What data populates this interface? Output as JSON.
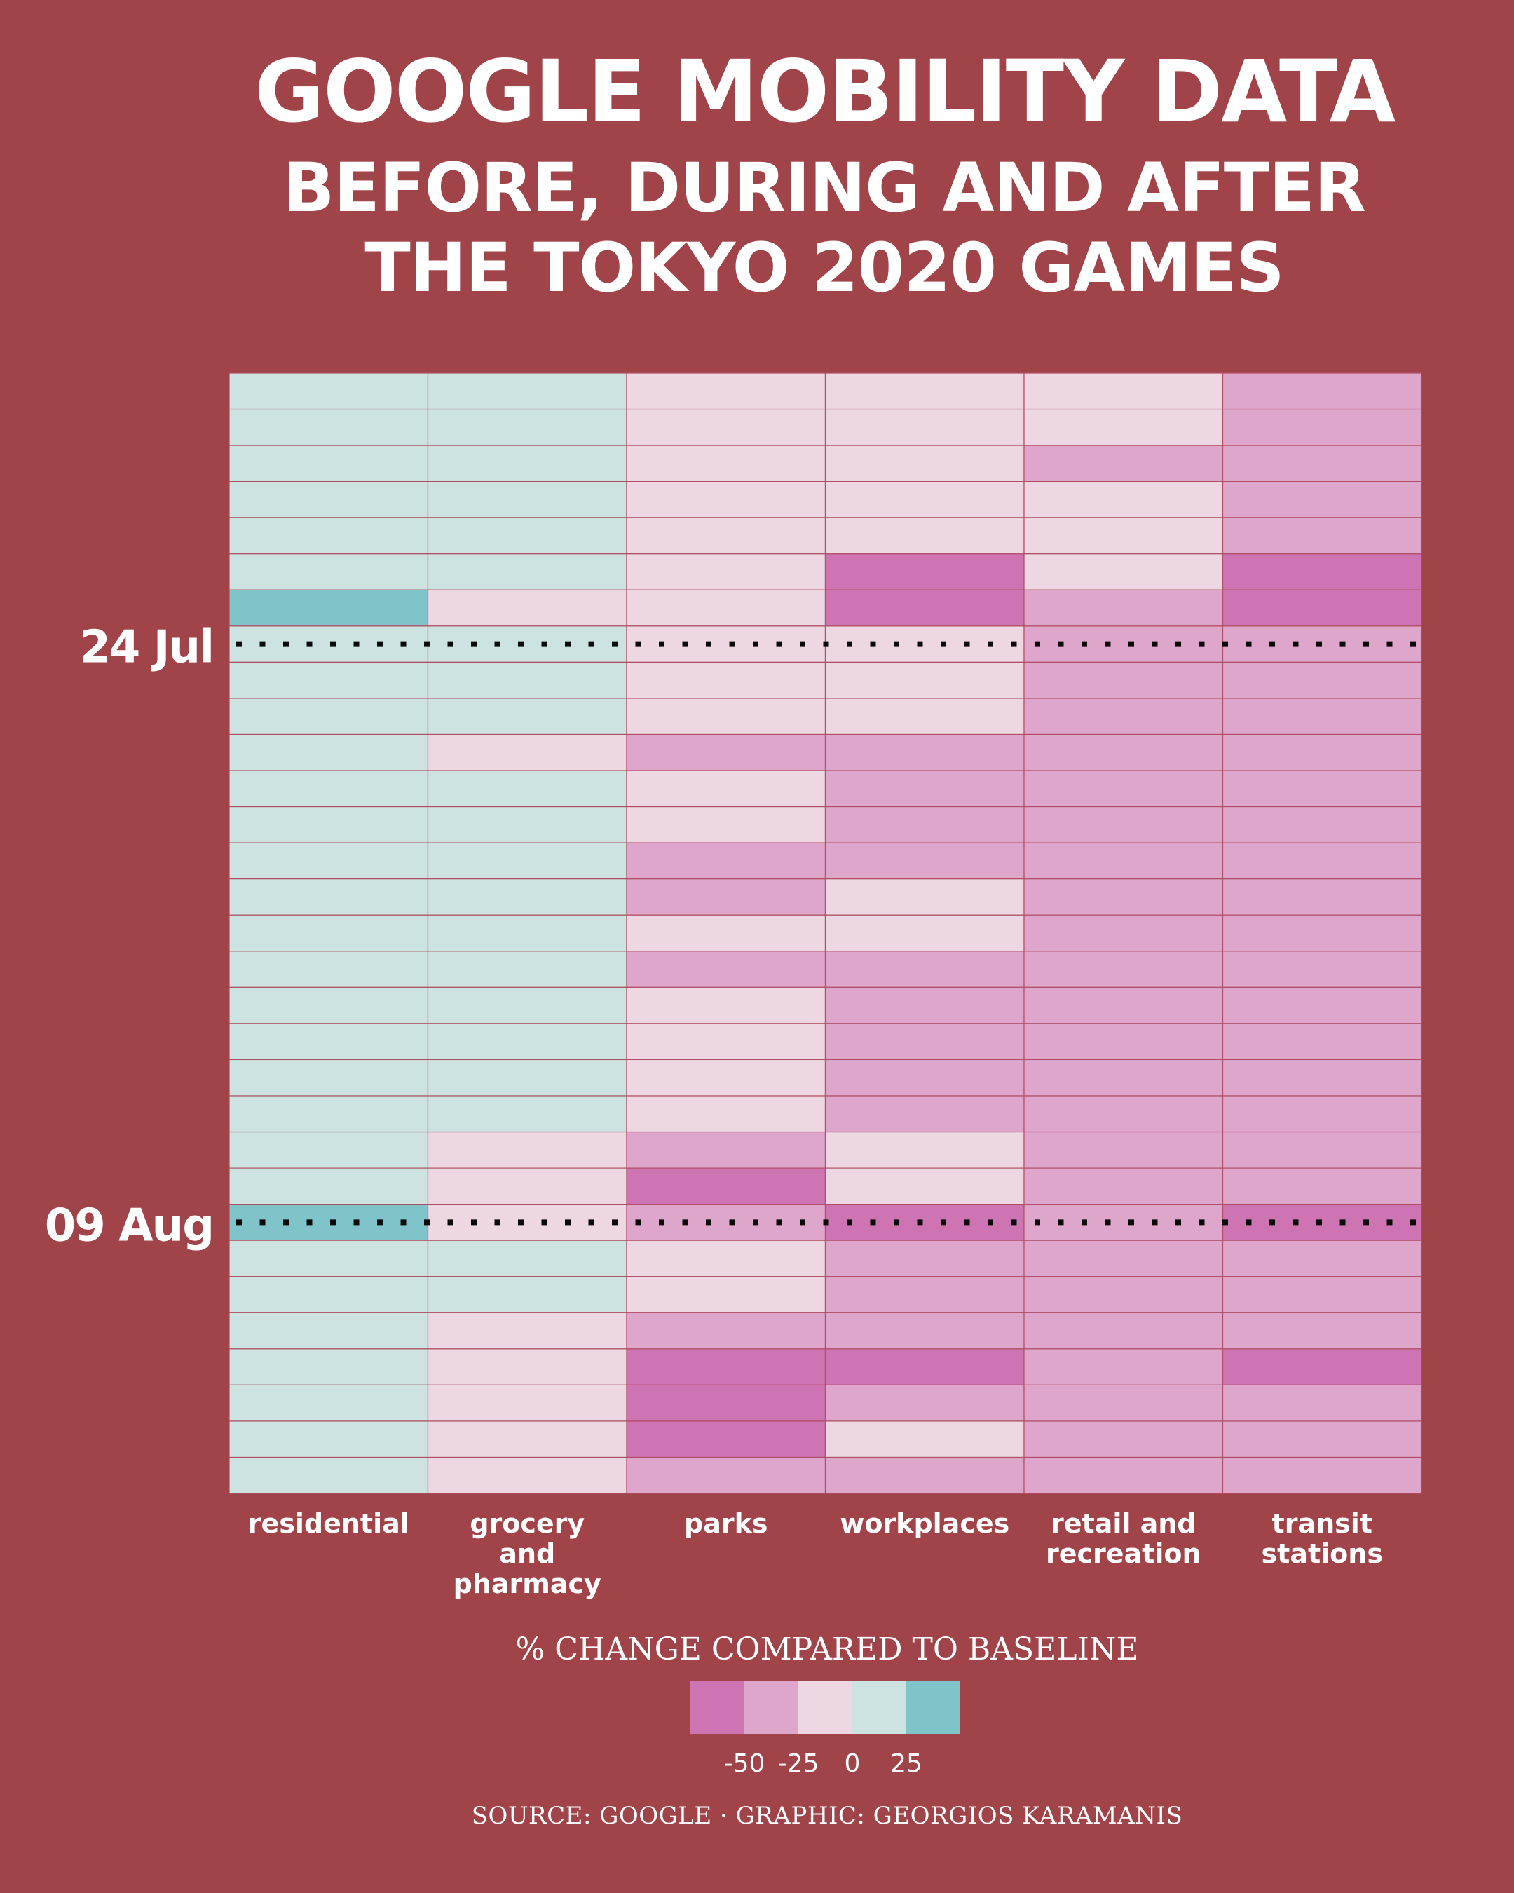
{
  "title": {
    "line1": "GOOGLE MOBILITY DATA",
    "line2": "BEFORE, DURING AND AFTER",
    "line3": "THE TOKYO 2020 GAMES"
  },
  "source": "SOURCE: GOOGLE · GRAPHIC: GEORGIOS KARAMANIS",
  "chart_data": {
    "type": "heatmap",
    "columns": [
      [
        "residential"
      ],
      [
        "grocery",
        "and",
        "pharmacy"
      ],
      [
        "parks"
      ],
      [
        "workplaces"
      ],
      [
        "retail and",
        "recreation"
      ],
      [
        "transit",
        "stations"
      ]
    ],
    "row_count": 31,
    "date_markers": [
      {
        "label": "24 Jul",
        "row": 7
      },
      {
        "label": "09 Aug",
        "row": 23
      }
    ],
    "legend": {
      "title": "% CHANGE COMPARED TO BASELINE",
      "ticks": [
        "-50",
        "-25",
        "0",
        "25"
      ],
      "colors": [
        "#cf74b2",
        "#dfa6cb",
        "#ecd7e3",
        "#cce3e2",
        "#7ec4c8"
      ]
    },
    "bins": [
      [
        3,
        3,
        2,
        2,
        2,
        1
      ],
      [
        3,
        3,
        2,
        2,
        2,
        1
      ],
      [
        3,
        3,
        2,
        2,
        1,
        1
      ],
      [
        3,
        3,
        2,
        2,
        2,
        1
      ],
      [
        3,
        3,
        2,
        2,
        2,
        1
      ],
      [
        3,
        3,
        2,
        0,
        2,
        0
      ],
      [
        4,
        2,
        2,
        0,
        1,
        0
      ],
      [
        3,
        3,
        2,
        2,
        1,
        1
      ],
      [
        3,
        3,
        2,
        2,
        1,
        1
      ],
      [
        3,
        3,
        2,
        2,
        1,
        1
      ],
      [
        3,
        2,
        1,
        1,
        1,
        1
      ],
      [
        3,
        3,
        2,
        1,
        1,
        1
      ],
      [
        3,
        3,
        2,
        1,
        1,
        1
      ],
      [
        3,
        3,
        1,
        1,
        1,
        1
      ],
      [
        3,
        3,
        1,
        2,
        1,
        1
      ],
      [
        3,
        3,
        2,
        2,
        1,
        1
      ],
      [
        3,
        3,
        1,
        1,
        1,
        1
      ],
      [
        3,
        3,
        2,
        1,
        1,
        1
      ],
      [
        3,
        3,
        2,
        1,
        1,
        1
      ],
      [
        3,
        3,
        2,
        1,
        1,
        1
      ],
      [
        3,
        3,
        2,
        1,
        1,
        1
      ],
      [
        3,
        2,
        1,
        2,
        1,
        1
      ],
      [
        3,
        2,
        0,
        2,
        1,
        1
      ],
      [
        4,
        2,
        1,
        0,
        1,
        0
      ],
      [
        3,
        3,
        2,
        1,
        1,
        1
      ],
      [
        3,
        3,
        2,
        1,
        1,
        1
      ],
      [
        3,
        2,
        1,
        1,
        1,
        1
      ],
      [
        3,
        2,
        0,
        0,
        1,
        0
      ],
      [
        3,
        2,
        0,
        1,
        1,
        1
      ],
      [
        3,
        2,
        0,
        2,
        1,
        1
      ],
      [
        3,
        2,
        1,
        1,
        1,
        1
      ]
    ]
  }
}
